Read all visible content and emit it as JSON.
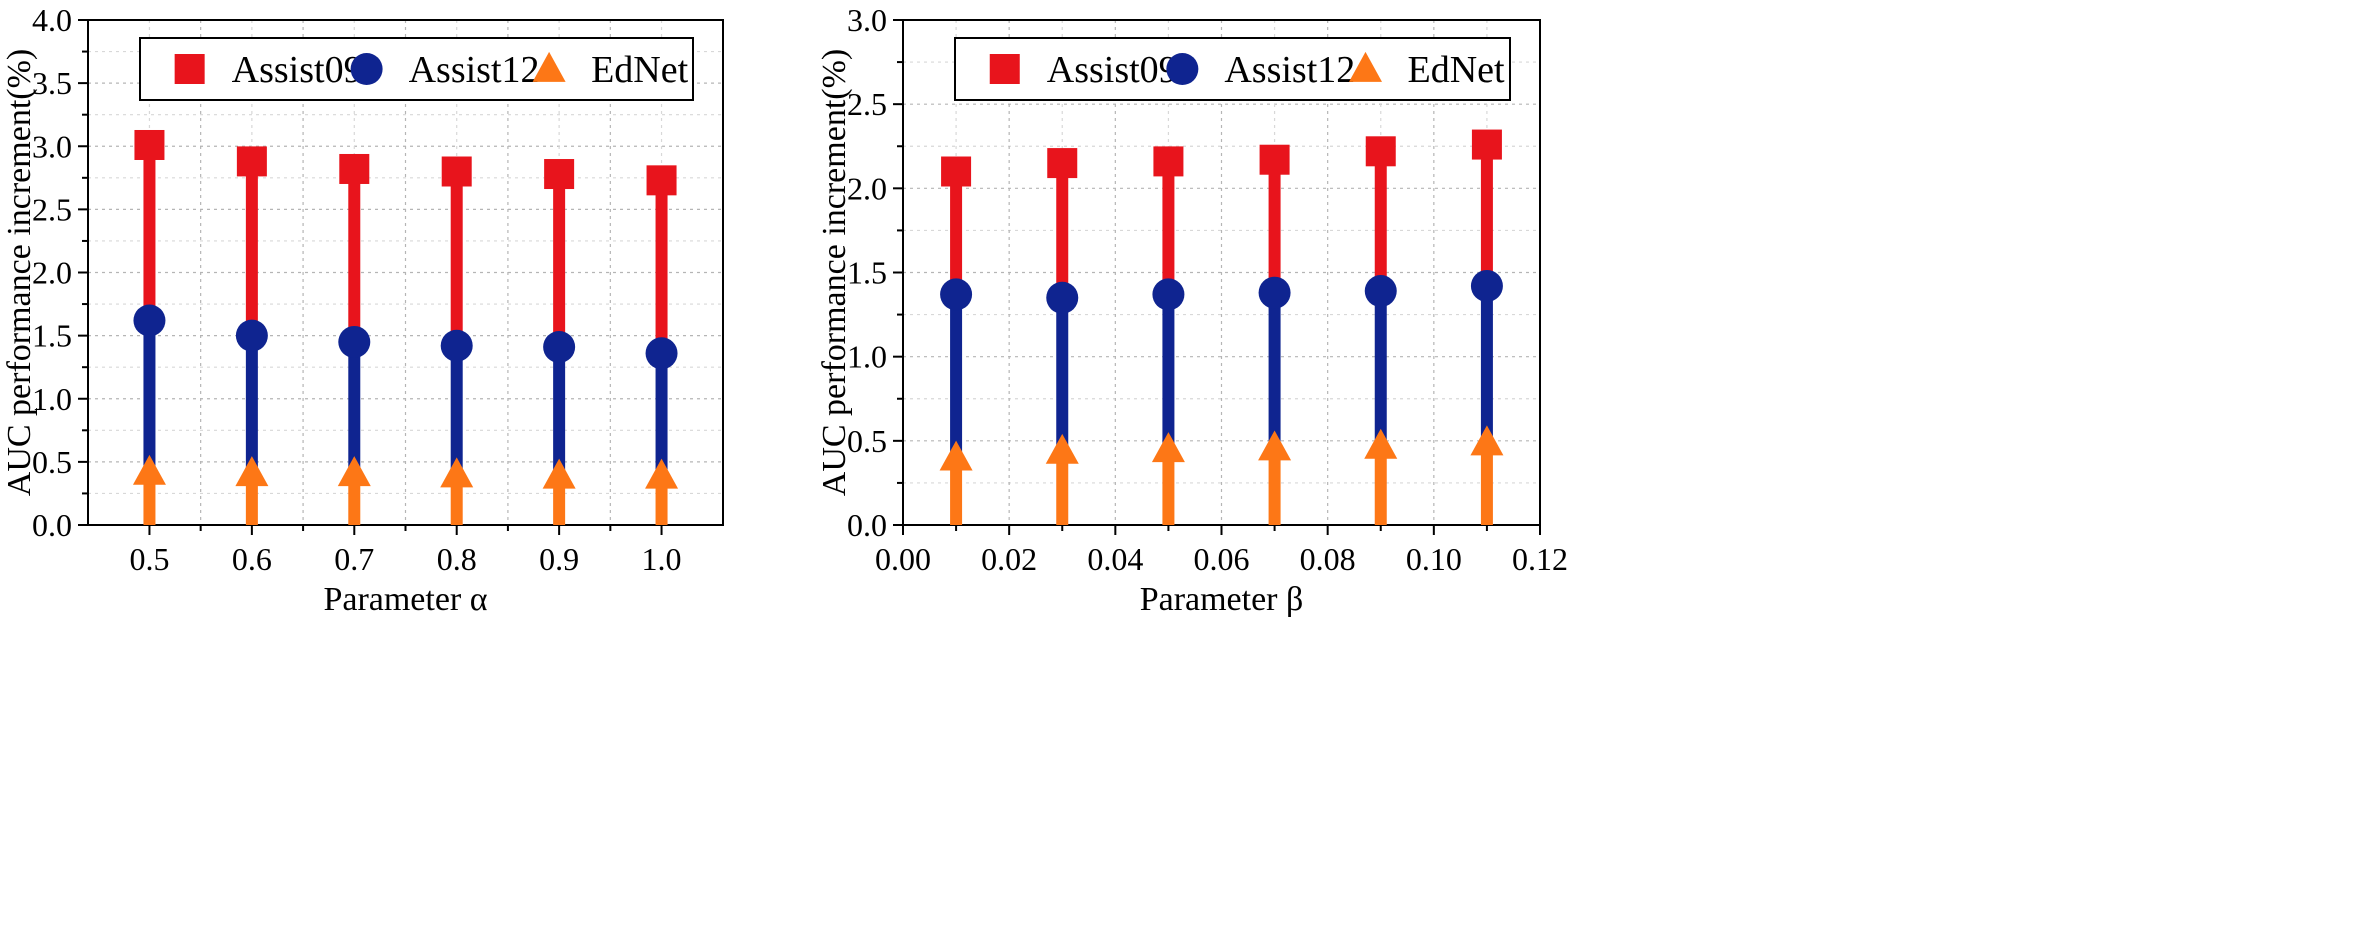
{
  "chart_data": [
    {
      "type": "dumbbell",
      "id": "alpha",
      "xlabel": "Parameter α",
      "ylabel": "AUC performance increment(%)",
      "x_type": "categorical",
      "categories": [
        "0.5",
        "0.6",
        "0.7",
        "0.8",
        "0.9",
        "1.0"
      ],
      "ylim": [
        0.0,
        4.0
      ],
      "yticks": [
        "0.0",
        "0.5",
        "1.0",
        "1.5",
        "2.0",
        "2.5",
        "3.0",
        "3.5",
        "4.0"
      ],
      "grid": true,
      "legend_position": "top-right",
      "series": [
        {
          "name": "Assist09",
          "marker": "square",
          "color": "#e8141c",
          "values": [
            3.01,
            2.88,
            2.82,
            2.8,
            2.78,
            2.73
          ]
        },
        {
          "name": "Assist12",
          "marker": "circle",
          "color": "#0f2490",
          "values": [
            1.62,
            1.5,
            1.45,
            1.42,
            1.41,
            1.36
          ]
        },
        {
          "name": "EdNet",
          "marker": "triangle",
          "color": "#fd7716",
          "values": [
            0.42,
            0.41,
            0.41,
            0.4,
            0.39,
            0.39
          ]
        }
      ]
    },
    {
      "type": "dumbbell",
      "id": "beta",
      "xlabel": "Parameter β",
      "ylabel": "AUC performance increment(%)",
      "x_type": "numeric",
      "x": [
        0.01,
        0.03,
        0.05,
        0.07,
        0.09,
        0.11
      ],
      "xlim": [
        0.0,
        0.12
      ],
      "xticks": [
        "0.00",
        "0.02",
        "0.04",
        "0.06",
        "0.08",
        "0.10",
        "0.12"
      ],
      "ylim": [
        0.0,
        3.0
      ],
      "yticks": [
        "0.0",
        "0.5",
        "1.0",
        "1.5",
        "2.0",
        "2.5",
        "3.0"
      ],
      "grid": true,
      "legend_position": "top-right",
      "series": [
        {
          "name": "Assist09",
          "marker": "square",
          "color": "#e8141c",
          "values": [
            2.1,
            2.15,
            2.16,
            2.17,
            2.22,
            2.26
          ]
        },
        {
          "name": "Assist12",
          "marker": "circle",
          "color": "#0f2490",
          "values": [
            1.37,
            1.35,
            1.37,
            1.38,
            1.39,
            1.42
          ]
        },
        {
          "name": "EdNet",
          "marker": "triangle",
          "color": "#fd7716",
          "values": [
            0.4,
            0.44,
            0.45,
            0.46,
            0.47,
            0.49
          ]
        }
      ]
    }
  ]
}
